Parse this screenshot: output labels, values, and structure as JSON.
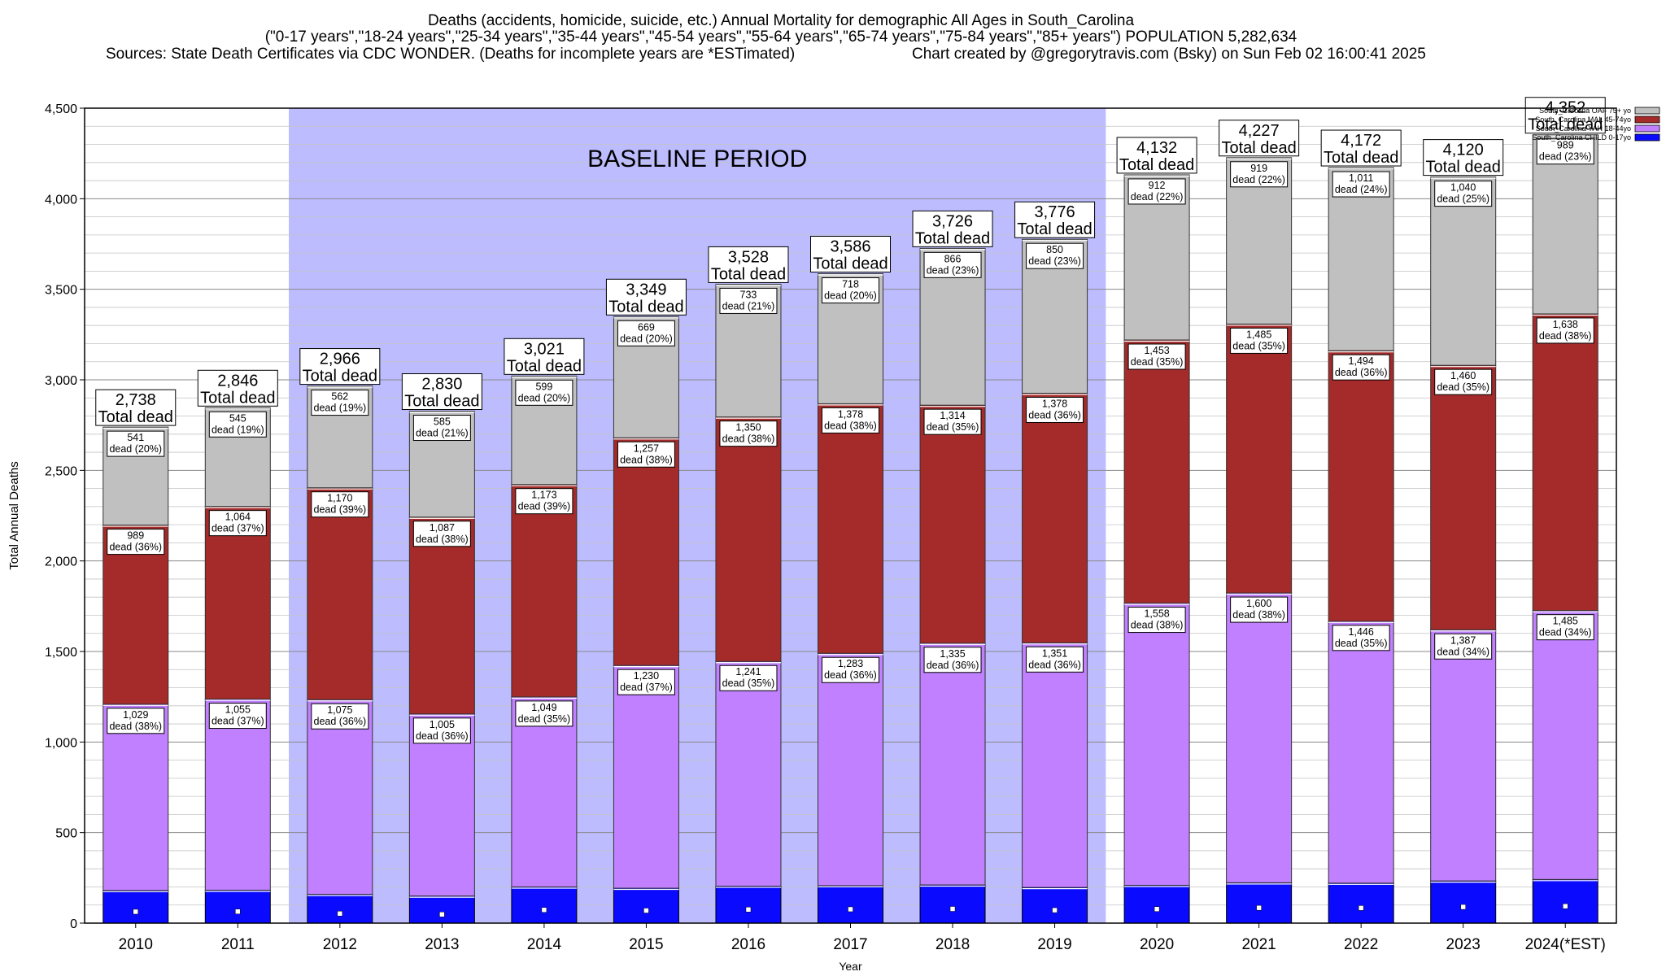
{
  "header": {
    "title_line1": "Deaths (accidents, homicide, suicide, etc.) Annual Mortality for demographic All Ages in South_Carolina",
    "title_line2": "(\"0-17 years\",\"18-24 years\",\"25-34 years\",\"35-44 years\",\"45-54 years\",\"55-64 years\",\"65-74 years\",\"75-84 years\",\"85+ years\") POPULATION 5,282,634",
    "sources": "Sources: State Death Certificates via CDC WONDER. (Deaths for incomplete years are *ESTimated)",
    "credit": "Chart created by @gregorytravis.com (Bsky) on Sun Feb 02 16:00:41 2025"
  },
  "chart_data": {
    "type": "bar",
    "stacked": true,
    "xlabel": "Year",
    "ylabel": "Total Annual Deaths",
    "ylim": [
      0,
      4500
    ],
    "yticks": [
      "0",
      "500",
      "1,000",
      "1,500",
      "2,000",
      "2,500",
      "3,000",
      "3,500",
      "4,000",
      "4,500"
    ],
    "grid": true,
    "legend_position": "top-right",
    "baseline_label": "BASELINE PERIOD",
    "baseline_range": [
      "2012",
      "2019"
    ],
    "categories": [
      "2010",
      "2011",
      "2012",
      "2013",
      "2014",
      "2015",
      "2016",
      "2017",
      "2018",
      "2019",
      "2020",
      "2021",
      "2022",
      "2023",
      "2024(*EST)"
    ],
    "totals": [
      2738,
      2846,
      2966,
      2830,
      3021,
      3349,
      3528,
      3586,
      3726,
      3776,
      4132,
      4227,
      4172,
      4120,
      4352
    ],
    "totals_labels": [
      "2,738",
      "2,846",
      "2,966",
      "2,830",
      "3,021",
      "3,349",
      "3,528",
      "3,586",
      "3,726",
      "3,776",
      "4,132",
      "4,227",
      "4,172",
      "4,120",
      "4,352"
    ],
    "total_caption": "Total dead",
    "segment_caption": "dead",
    "series": [
      {
        "name": "South_Carolina CHILD 0-17yo",
        "color": "#0a0aff",
        "values": [
          180,
          182,
          159,
          150,
          200,
          193,
          204,
          207,
          211,
          197,
          209,
          223,
          221,
          233,
          241
        ]
      },
      {
        "name": "South_Carolina YAH 18-44yo",
        "color": "#c080ff",
        "values": [
          1029,
          1055,
          1075,
          1005,
          1049,
          1230,
          1241,
          1283,
          1335,
          1351,
          1558,
          1600,
          1446,
          1387,
          1485
        ],
        "labels": [
          "1,029",
          "1,055",
          "1,075",
          "1,005",
          "1,049",
          "1,230",
          "1,241",
          "1,283",
          "1,335",
          "1,351",
          "1,558",
          "1,600",
          "1,446",
          "1,387",
          "1,485"
        ],
        "pct": [
          "38%",
          "37%",
          "36%",
          "36%",
          "35%",
          "37%",
          "35%",
          "36%",
          "36%",
          "36%",
          "38%",
          "38%",
          "35%",
          "34%",
          "34%"
        ]
      },
      {
        "name": "South_Carolina MAL 45-74yo",
        "color": "#a52a2a",
        "values": [
          989,
          1064,
          1170,
          1087,
          1173,
          1257,
          1350,
          1378,
          1314,
          1378,
          1453,
          1485,
          1494,
          1460,
          1638
        ],
        "labels": [
          "989",
          "1,064",
          "1,170",
          "1,087",
          "1,173",
          "1,257",
          "1,350",
          "1,378",
          "1,314",
          "1,378",
          "1,453",
          "1,485",
          "1,494",
          "1,460",
          "1,638"
        ],
        "pct": [
          "36%",
          "37%",
          "39%",
          "38%",
          "39%",
          "38%",
          "38%",
          "38%",
          "35%",
          "36%",
          "35%",
          "35%",
          "36%",
          "35%",
          "38%"
        ]
      },
      {
        "name": "South_Carolina OAF 75+ yo",
        "color": "#c0c0c0",
        "values": [
          541,
          545,
          562,
          585,
          599,
          669,
          733,
          718,
          866,
          850,
          912,
          919,
          1011,
          1040,
          989
        ],
        "labels": [
          "541",
          "545",
          "562",
          "585",
          "599",
          "669",
          "733",
          "718",
          "866",
          "850",
          "912",
          "919",
          "1,011",
          "1,040",
          "989"
        ],
        "pct": [
          "20%",
          "19%",
          "19%",
          "21%",
          "20%",
          "20%",
          "21%",
          "20%",
          "23%",
          "23%",
          "22%",
          "22%",
          "24%",
          "25%",
          "23%"
        ]
      }
    ]
  }
}
